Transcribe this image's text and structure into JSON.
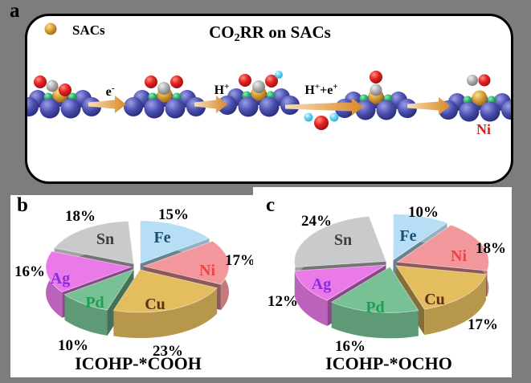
{
  "figure": {
    "background_color": "#7d7d7d",
    "panel_color": "#ffffff"
  },
  "panel_a": {
    "label": "a",
    "legend": {
      "marker_icon": "gold-sphere-icon",
      "text": "SACs"
    },
    "title": {
      "pre": "CO",
      "sub": "2",
      "post": "RR on SACs"
    },
    "arrow_labels": [
      {
        "base": "e",
        "sup": "-"
      },
      {
        "base": "H",
        "sup": "+"
      },
      {
        "base": "H",
        "sup": "+",
        "base2": "+e",
        "sup2": "+"
      }
    ],
    "product_label": "Ni",
    "atom_colors": {
      "support_metal": "#4649a8",
      "single_atom": "#d89b33",
      "coordinating_atoms": "#2fae66",
      "oxygen": "#e41e20",
      "carbon": "#a5a5a5",
      "hydrogen": "#63d5f5"
    },
    "arrow_color": "#d98a26"
  },
  "panel_b": {
    "label": "b",
    "title": "ICOHP-*COOH"
  },
  "panel_c": {
    "label": "c",
    "title": "ICOHP-*OCHO"
  },
  "chart_data": [
    {
      "type": "pie",
      "title": "ICOHP-*COOH",
      "style": "3d-exploded",
      "start_angle_deg": -90,
      "direction": "clockwise",
      "unit": "%",
      "slices": [
        {
          "label": "Fe",
          "value": 15,
          "color": "#b6def4",
          "label_color": "#1c4d73"
        },
        {
          "label": "Ni",
          "value": 17,
          "color": "#f2989c",
          "label_color": "#ee4248"
        },
        {
          "label": "Cu",
          "value": 23,
          "color": "#e3bd5e",
          "label_color": "#5f2f16"
        },
        {
          "label": "Pd",
          "value": 10,
          "color": "#77c195",
          "label_color": "#1e9e55"
        },
        {
          "label": "Ag",
          "value": 16,
          "color": "#ea7ae8",
          "label_color": "#8a2be2"
        },
        {
          "label": "Sn",
          "value": 18,
          "color": "#c9cacb",
          "label_color": "#3d3d3d"
        }
      ]
    },
    {
      "type": "pie",
      "title": "ICOHP-*OCHO",
      "style": "3d-exploded",
      "start_angle_deg": -90,
      "direction": "clockwise",
      "unit": "%",
      "slices": [
        {
          "label": "Fe",
          "value": 10,
          "color": "#b6def4",
          "label_color": "#1c4d73"
        },
        {
          "label": "Ni",
          "value": 18,
          "color": "#f2989c",
          "label_color": "#ee4248"
        },
        {
          "label": "Cu",
          "value": 17,
          "color": "#e3bd5e",
          "label_color": "#5f2f16"
        },
        {
          "label": "Pd",
          "value": 16,
          "color": "#77c195",
          "label_color": "#1e9e55"
        },
        {
          "label": "Ag",
          "value": 12,
          "color": "#ea7ae8",
          "label_color": "#8a2be2"
        },
        {
          "label": "Sn",
          "value": 24,
          "color": "#c9cacb",
          "label_color": "#3d3d3d"
        }
      ]
    }
  ]
}
